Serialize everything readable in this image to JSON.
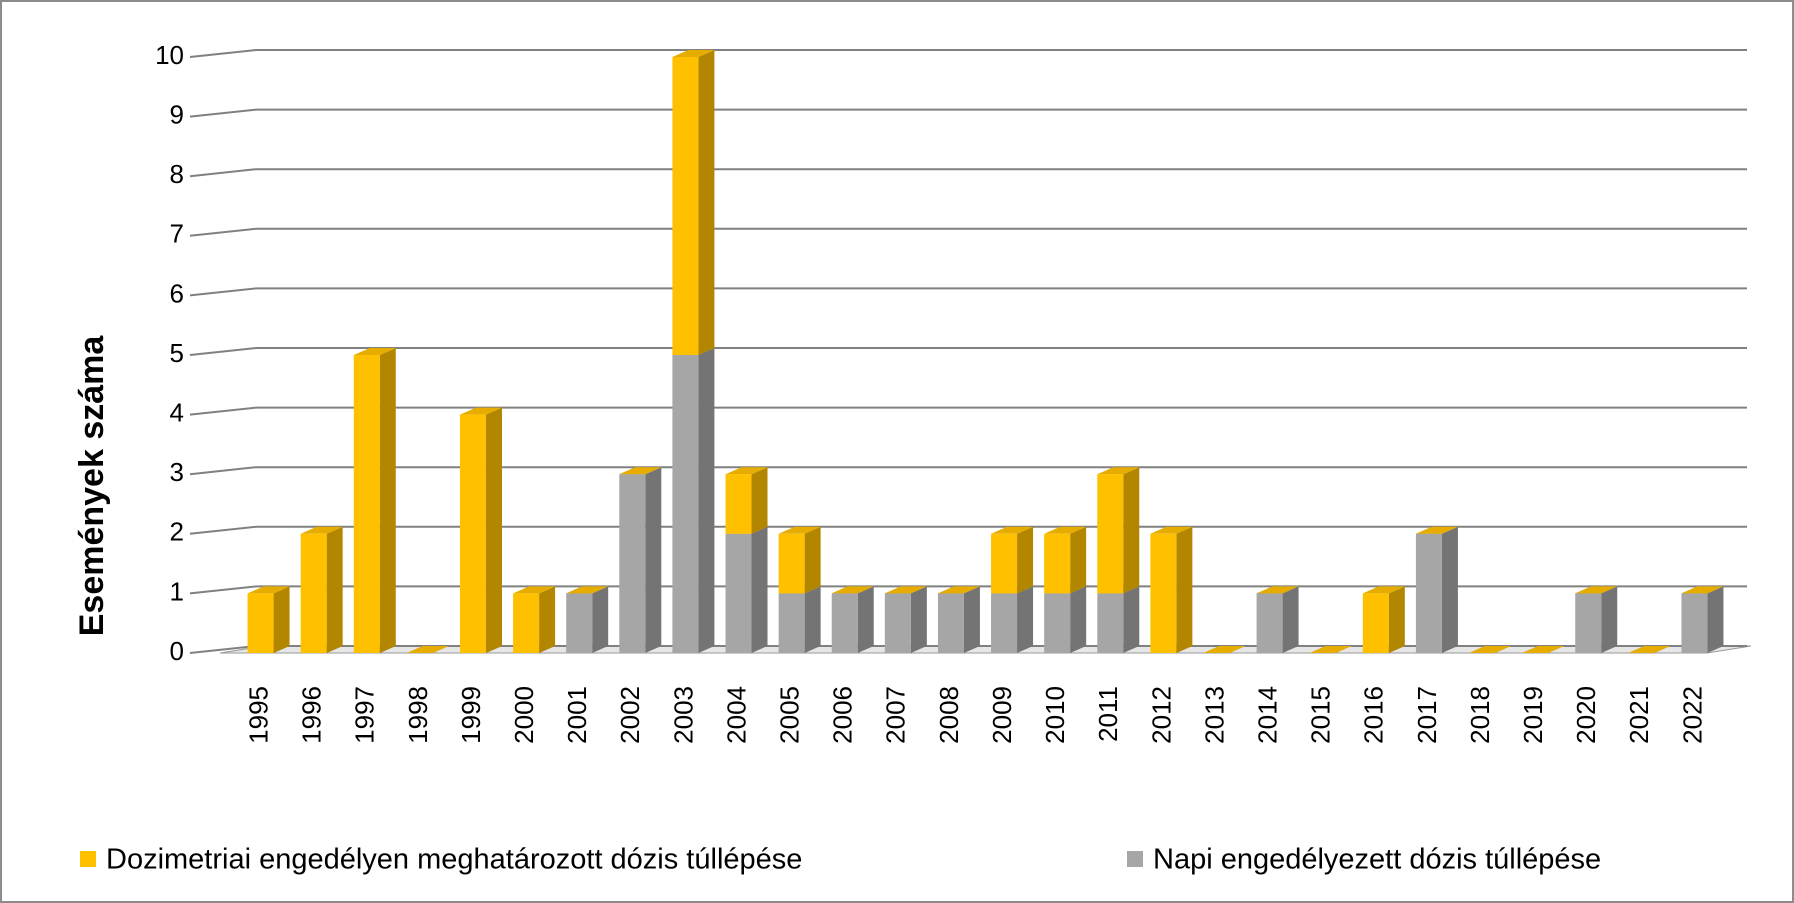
{
  "chart_data": {
    "type": "bar",
    "stacked": true,
    "y_axis_label": "Események száma",
    "categories": [
      "1995",
      "1996",
      "1997",
      "1998",
      "1999",
      "2000",
      "2001",
      "2002",
      "2003",
      "2004",
      "2005",
      "2006",
      "2007",
      "2008",
      "2009",
      "2010",
      "2011",
      "2012",
      "2013",
      "2014",
      "2015",
      "2016",
      "2017",
      "2018",
      "2019",
      "2020",
      "2021",
      "2022"
    ],
    "series": [
      {
        "name": "Dozimetriai engedélyen meghatározott dózis túllépése",
        "color": "#ffc000",
        "values": [
          1,
          2,
          5,
          0,
          4,
          1,
          0,
          0,
          5,
          1,
          1,
          0,
          0,
          0,
          1,
          1,
          2,
          2,
          0,
          0,
          0,
          1,
          0,
          0,
          0,
          0,
          0,
          0
        ]
      },
      {
        "name": "Napi engedélyezett dózis túllépése",
        "color": "#a6a6a6",
        "values": [
          0,
          0,
          0,
          0,
          0,
          0,
          1,
          3,
          5,
          2,
          1,
          1,
          1,
          1,
          1,
          1,
          1,
          0,
          0,
          1,
          0,
          0,
          2,
          0,
          0,
          1,
          0,
          1
        ]
      }
    ],
    "ylim": [
      0,
      10
    ],
    "yticks": [
      0,
      1,
      2,
      3,
      4,
      5,
      6,
      7,
      8,
      9,
      10
    ],
    "grid": true,
    "legend": "bottom"
  }
}
